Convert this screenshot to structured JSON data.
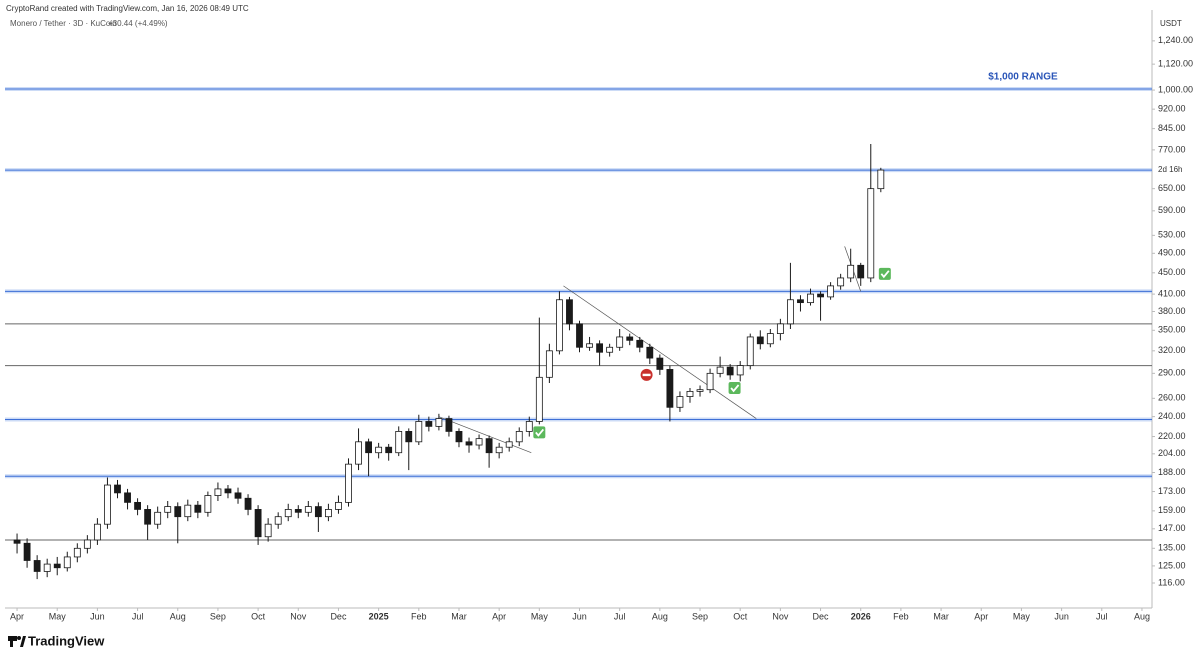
{
  "header": {
    "credit": "CryptoRand created with TradingView.com, Jan 16, 2026 08:49 UTC",
    "symbol": "Monero / Tether · 3D · KuCoin",
    "change": "+30.44 (+4.49%)",
    "logo": "TradingView"
  },
  "chart_data": {
    "type": "candlestick",
    "currency": "USDT",
    "log_scale": true,
    "up_color": "#ffffff",
    "down_color": "#1a1a1a",
    "outline_color": "#1a1a1a",
    "xlim": [
      -0.3,
      28.25
    ],
    "xticks": [
      {
        "value": 0,
        "label": "Apr"
      },
      {
        "value": 1,
        "label": "May"
      },
      {
        "value": 2,
        "label": "Jun"
      },
      {
        "value": 3,
        "label": "Jul"
      },
      {
        "value": 4,
        "label": "Aug"
      },
      {
        "value": 5,
        "label": "Sep"
      },
      {
        "value": 6,
        "label": "Oct"
      },
      {
        "value": 7,
        "label": "Nov"
      },
      {
        "value": 8,
        "label": "Dec"
      },
      {
        "value": 9,
        "label": "2025"
      },
      {
        "value": 10,
        "label": "Feb"
      },
      {
        "value": 11,
        "label": "Mar"
      },
      {
        "value": 12,
        "label": "Apr"
      },
      {
        "value": 13,
        "label": "May"
      },
      {
        "value": 14,
        "label": "Jun"
      },
      {
        "value": 15,
        "label": "Jul"
      },
      {
        "value": 16,
        "label": "Aug"
      },
      {
        "value": 17,
        "label": "Sep"
      },
      {
        "value": 18,
        "label": "Oct"
      },
      {
        "value": 19,
        "label": "Nov"
      },
      {
        "value": 20,
        "label": "Dec"
      },
      {
        "value": 21,
        "label": "2026"
      },
      {
        "value": 22,
        "label": "Feb"
      },
      {
        "value": 23,
        "label": "Mar"
      },
      {
        "value": 24,
        "label": "Apr"
      },
      {
        "value": 25,
        "label": "May"
      },
      {
        "value": 26,
        "label": "Jun"
      },
      {
        "value": 27,
        "label": "Jul"
      },
      {
        "value": 28,
        "label": "Aug"
      }
    ],
    "ylim": [
      104,
      1419
    ],
    "yticks": [
      {
        "value": 116,
        "label": "116.00"
      },
      {
        "value": 125,
        "label": "125.00"
      },
      {
        "value": 135,
        "label": "135.00"
      },
      {
        "value": 147,
        "label": "147.00"
      },
      {
        "value": 159,
        "label": "159.00"
      },
      {
        "value": 173,
        "label": "173.00"
      },
      {
        "value": 188,
        "label": "188.00"
      },
      {
        "value": 204,
        "label": "204.00"
      },
      {
        "value": 220,
        "label": "220.00"
      },
      {
        "value": 240,
        "label": "240.00"
      },
      {
        "value": 260,
        "label": "260.00"
      },
      {
        "value": 290,
        "label": "290.00"
      },
      {
        "value": 320,
        "label": "320.00"
      },
      {
        "value": 350,
        "label": "350.00"
      },
      {
        "value": 380,
        "label": "380.00"
      },
      {
        "value": 410,
        "label": "410.00"
      },
      {
        "value": 450,
        "label": "450.00"
      },
      {
        "value": 490,
        "label": "490.00"
      },
      {
        "value": 530,
        "label": "530.00"
      },
      {
        "value": 590,
        "label": "590.00"
      },
      {
        "value": 650,
        "label": "650.00"
      },
      {
        "value": 770,
        "label": "770.00"
      },
      {
        "value": 845,
        "label": "845.00"
      },
      {
        "value": 920,
        "label": "920.00"
      },
      {
        "value": 1000,
        "label": "1,000.00"
      },
      {
        "value": 1120,
        "label": "1,120.00"
      },
      {
        "value": 1240,
        "label": "1,240.00"
      }
    ],
    "levels": [
      {
        "value": 1005,
        "color": "#8fb0ec",
        "label": "$1,000 RANGE"
      },
      {
        "value": 705,
        "color": "#8fb0ec",
        "label": "2d 16h"
      },
      {
        "value": 415,
        "color": "#8fb0ec"
      },
      {
        "value": 360,
        "color": "#666666"
      },
      {
        "value": 300,
        "color": "#666666"
      },
      {
        "value": 237,
        "color": "#8fb0ec"
      },
      {
        "value": 185,
        "color": "#8fb0ec"
      },
      {
        "value": 140,
        "color": "#666666"
      }
    ],
    "trendlines": [
      {
        "x": [
          10.5,
          12.8
        ],
        "y": [
          240,
          205
        ]
      },
      {
        "x": [
          13.6,
          18.4
        ],
        "y": [
          425,
          238
        ]
      },
      {
        "x": [
          20.6,
          21.0
        ],
        "y": [
          505,
          415
        ]
      }
    ],
    "markers": [
      {
        "x": 13.0,
        "y": 224,
        "kind": "check"
      },
      {
        "x": 15.67,
        "y": 288,
        "kind": "stop"
      },
      {
        "x": 17.86,
        "y": 272,
        "kind": "check"
      },
      {
        "x": 21.6,
        "y": 448,
        "kind": "check"
      }
    ],
    "x": [
      0,
      0.25,
      0.5,
      0.75,
      1,
      1.25,
      1.5,
      1.75,
      2,
      2.25,
      2.5,
      2.75,
      3,
      3.25,
      3.5,
      3.75,
      4,
      4.25,
      4.5,
      4.75,
      5,
      5.25,
      5.5,
      5.75,
      6,
      6.25,
      6.5,
      6.75,
      7,
      7.25,
      7.5,
      7.75,
      8,
      8.25,
      8.5,
      8.75,
      9,
      9.25,
      9.5,
      9.75,
      10,
      10.25,
      10.5,
      10.75,
      11,
      11.25,
      11.5,
      11.75,
      12,
      12.25,
      12.5,
      12.75,
      13,
      13.25,
      13.5,
      13.75,
      14,
      14.25,
      14.5,
      14.75,
      15,
      15.25,
      15.5,
      15.75,
      16,
      16.25,
      16.5,
      16.75,
      17,
      17.25,
      17.5,
      17.75,
      18,
      18.25,
      18.5,
      18.75,
      19,
      19.25,
      19.5,
      19.75,
      20,
      20.25,
      20.5,
      20.75,
      21,
      21.25,
      21.5
    ],
    "candles": [
      [
        140,
        144,
        132,
        138
      ],
      [
        138,
        141,
        124,
        128
      ],
      [
        128,
        131,
        118,
        122
      ],
      [
        122,
        129,
        119,
        126
      ],
      [
        126,
        130,
        120,
        124
      ],
      [
        124,
        133,
        122,
        130
      ],
      [
        130,
        138,
        127,
        135
      ],
      [
        135,
        143,
        132,
        140
      ],
      [
        140,
        154,
        137,
        150
      ],
      [
        150,
        184,
        147,
        178
      ],
      [
        178,
        182,
        168,
        172
      ],
      [
        172,
        175,
        160,
        165
      ],
      [
        165,
        168,
        156,
        160
      ],
      [
        160,
        163,
        140,
        150
      ],
      [
        150,
        162,
        147,
        158
      ],
      [
        158,
        166,
        154,
        162
      ],
      [
        162,
        165,
        138,
        155
      ],
      [
        155,
        167,
        152,
        163
      ],
      [
        163,
        166,
        154,
        158
      ],
      [
        158,
        173,
        155,
        170
      ],
      [
        170,
        180,
        166,
        175
      ],
      [
        175,
        178,
        168,
        172
      ],
      [
        172,
        176,
        164,
        168
      ],
      [
        168,
        171,
        156,
        160
      ],
      [
        160,
        163,
        137,
        142
      ],
      [
        142,
        154,
        139,
        150
      ],
      [
        150,
        158,
        147,
        155
      ],
      [
        155,
        164,
        152,
        160
      ],
      [
        160,
        163,
        154,
        158
      ],
      [
        158,
        166,
        155,
        162
      ],
      [
        162,
        165,
        145,
        155
      ],
      [
        155,
        164,
        152,
        160
      ],
      [
        160,
        170,
        157,
        165
      ],
      [
        165,
        200,
        162,
        195
      ],
      [
        195,
        228,
        190,
        215
      ],
      [
        215,
        218,
        185,
        205
      ],
      [
        205,
        214,
        200,
        210
      ],
      [
        210,
        213,
        198,
        205
      ],
      [
        205,
        230,
        202,
        225
      ],
      [
        225,
        228,
        190,
        215
      ],
      [
        215,
        242,
        212,
        235
      ],
      [
        235,
        240,
        225,
        230
      ],
      [
        230,
        243,
        226,
        238
      ],
      [
        238,
        241,
        220,
        225
      ],
      [
        225,
        228,
        210,
        215
      ],
      [
        215,
        219,
        205,
        212
      ],
      [
        212,
        222,
        208,
        218
      ],
      [
        218,
        221,
        192,
        205
      ],
      [
        205,
        214,
        200,
        210
      ],
      [
        210,
        219,
        206,
        215
      ],
      [
        215,
        229,
        211,
        225
      ],
      [
        225,
        240,
        220,
        235
      ],
      [
        235,
        370,
        232,
        285
      ],
      [
        285,
        330,
        278,
        320
      ],
      [
        320,
        415,
        315,
        400
      ],
      [
        400,
        405,
        350,
        360
      ],
      [
        360,
        365,
        318,
        325
      ],
      [
        325,
        340,
        320,
        330
      ],
      [
        330,
        335,
        300,
        318
      ],
      [
        318,
        330,
        312,
        325
      ],
      [
        325,
        352,
        320,
        340
      ],
      [
        340,
        345,
        328,
        335
      ],
      [
        335,
        340,
        318,
        325
      ],
      [
        325,
        330,
        302,
        310
      ],
      [
        310,
        315,
        288,
        295
      ],
      [
        295,
        300,
        235,
        250
      ],
      [
        250,
        268,
        245,
        262
      ],
      [
        262,
        272,
        255,
        268
      ],
      [
        268,
        275,
        262,
        270
      ],
      [
        270,
        296,
        266,
        290
      ],
      [
        290,
        312,
        285,
        298
      ],
      [
        298,
        302,
        282,
        288
      ],
      [
        288,
        306,
        280,
        300
      ],
      [
        300,
        345,
        295,
        340
      ],
      [
        340,
        350,
        322,
        330
      ],
      [
        330,
        352,
        325,
        345
      ],
      [
        345,
        368,
        335,
        360
      ],
      [
        360,
        470,
        352,
        400
      ],
      [
        400,
        408,
        380,
        395
      ],
      [
        395,
        420,
        390,
        410
      ],
      [
        410,
        415,
        365,
        405
      ],
      [
        405,
        432,
        400,
        425
      ],
      [
        425,
        448,
        418,
        440
      ],
      [
        440,
        500,
        432,
        465
      ],
      [
        465,
        470,
        425,
        440
      ],
      [
        440,
        790,
        432,
        650
      ],
      [
        650,
        712,
        640,
        705
      ]
    ]
  }
}
